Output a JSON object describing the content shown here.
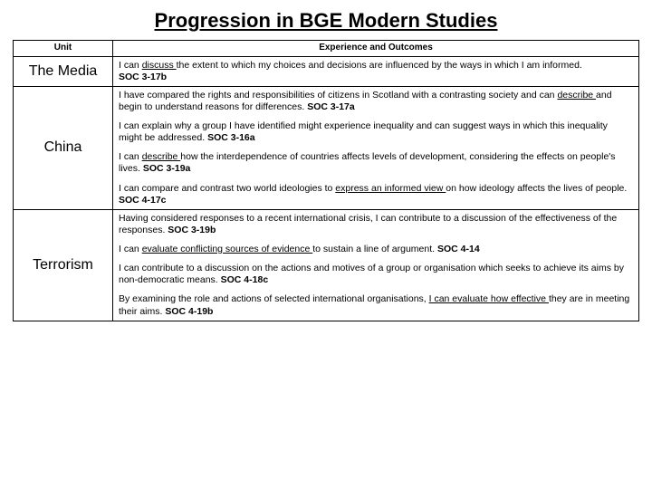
{
  "title": "Progression in BGE Modern Studies",
  "headers": {
    "unit": "Unit",
    "outcomes": "Experience and Outcomes"
  },
  "rows": [
    {
      "unit": "The Media",
      "paras": [
        {
          "segments": [
            {
              "t": "I can "
            },
            {
              "t": "discuss ",
              "u": true
            },
            {
              "t": "the extent to which my choices and decisions are influenced by the ways in which I am informed."
            },
            {
              "br": true
            },
            {
              "t": "SOC 3-17b",
              "b": true
            }
          ]
        }
      ]
    },
    {
      "unit": "China",
      "paras": [
        {
          "segments": [
            {
              "t": "I have compared the rights and responsibilities of citizens in Scotland with a contrasting society and can "
            },
            {
              "t": "describe ",
              "u": true
            },
            {
              "t": "and begin to understand reasons for differences. "
            },
            {
              "t": "SOC 3-17a",
              "b": true
            }
          ]
        },
        {
          "segments": [
            {
              "t": "I can explain why a group I have identified might experience inequality and can suggest ways in which this inequality might be addressed. "
            },
            {
              "t": "SOC 3-16a",
              "b": true
            }
          ]
        },
        {
          "segments": [
            {
              "t": "I can "
            },
            {
              "t": "describe ",
              "u": true
            },
            {
              "t": "how the interdependence of countries affects levels of development, considering the effects on people's lives. "
            },
            {
              "t": "SOC 3-19a",
              "b": true
            }
          ]
        },
        {
          "segments": [
            {
              "t": "I can compare and contrast two world ideologies to "
            },
            {
              "t": "express an informed view ",
              "u": true
            },
            {
              "t": "on how ideology affects the lives of people."
            },
            {
              "br": true
            },
            {
              "t": "SOC 4-17c",
              "b": true
            }
          ]
        }
      ]
    },
    {
      "unit": "Terrorism",
      "paras": [
        {
          "segments": [
            {
              "t": "Having considered responses to a recent international crisis, I can contribute to a discussion of the effectiveness of the responses. "
            },
            {
              "t": "SOC 3-19b",
              "b": true
            }
          ]
        },
        {
          "segments": [
            {
              "t": "I can "
            },
            {
              "t": "evaluate conflicting sources of evidence ",
              "u": true
            },
            {
              "t": "to sustain a line of argument. "
            },
            {
              "t": "SOC 4-14",
              "b": true
            }
          ]
        },
        {
          "segments": [
            {
              "t": "I can contribute to a discussion on the actions and motives of a group or organisation which seeks to achieve its aims by non-democratic means. "
            },
            {
              "t": "SOC 4-18c",
              "b": true
            }
          ]
        },
        {
          "segments": [
            {
              "t": "By examining the role and actions of selected international organisations, "
            },
            {
              "t": "I can evaluate how effective ",
              "u": true
            },
            {
              "t": "they are in meeting their aims. "
            },
            {
              "t": "SOC 4-19b",
              "b": true
            }
          ]
        }
      ]
    }
  ]
}
